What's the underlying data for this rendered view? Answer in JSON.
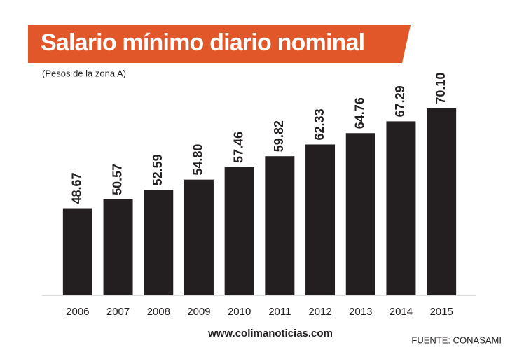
{
  "chart_data": {
    "type": "bar",
    "title": "Salario mínimo diario nominal",
    "subtitle": "(Pesos de la zona A)",
    "categories": [
      "2006",
      "2007",
      "2008",
      "2009",
      "2010",
      "2011",
      "2012",
      "2013",
      "2014",
      "2015"
    ],
    "values": [
      48.67,
      50.57,
      52.59,
      54.8,
      57.46,
      59.82,
      62.33,
      64.76,
      67.29,
      70.1
    ],
    "value_labels": [
      "48.67",
      "50.57",
      "52.59",
      "54.80",
      "57.46",
      "59.82",
      "62.33",
      "64.76",
      "67.29",
      "70.10"
    ],
    "color": "#231f20",
    "ylim": [
      30,
      72
    ],
    "source": "FUENTE: CONASAMI",
    "website": "www.colimanoticias.com"
  }
}
